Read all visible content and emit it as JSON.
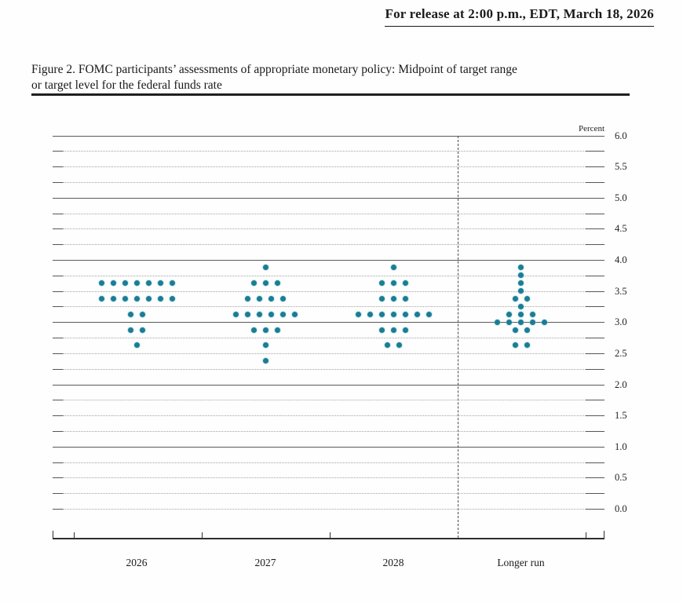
{
  "header": {
    "release_line": "For release at 2:00 p.m., EDT, March 18, 2026"
  },
  "figure": {
    "title_line1": "Figure 2. FOMC participants’ assessments of appropriate monetary policy: Midpoint of target range",
    "title_line2": "or target level for the federal funds rate"
  },
  "chart_data": {
    "type": "scatter",
    "title": "FOMC participants’ assessments of appropriate monetary policy: Midpoint of target range or target level for the federal funds rate",
    "unit_label": "Percent",
    "ylabel": "Percent",
    "ylim": [
      0.0,
      6.0
    ],
    "y_label_step": 0.5,
    "y_grid_step": 0.25,
    "grid": "solid lines at whole percents (1.0–6.0), dotted lines at quarter percents and 0.0",
    "legend_position": "none",
    "y_axis_labels": [
      "6.0",
      "5.5",
      "5.0",
      "4.5",
      "4.0",
      "3.5",
      "3.0",
      "2.5",
      "2.0",
      "1.5",
      "1.0",
      "0.5",
      "0.0"
    ],
    "categories": [
      "2026",
      "2027",
      "2028",
      "Longer run"
    ],
    "dot_color": "#1b7d93",
    "projections": [
      {
        "label": "2026",
        "dots": [
          {
            "rate": 3.625,
            "count": 7
          },
          {
            "rate": 3.375,
            "count": 7
          },
          {
            "rate": 3.125,
            "count": 2
          },
          {
            "rate": 2.875,
            "count": 2
          },
          {
            "rate": 2.625,
            "count": 1
          }
        ]
      },
      {
        "label": "2027",
        "dots": [
          {
            "rate": 3.875,
            "count": 1
          },
          {
            "rate": 3.625,
            "count": 3
          },
          {
            "rate": 3.375,
            "count": 4
          },
          {
            "rate": 3.125,
            "count": 6
          },
          {
            "rate": 2.875,
            "count": 3
          },
          {
            "rate": 2.625,
            "count": 1
          },
          {
            "rate": 2.375,
            "count": 1
          }
        ]
      },
      {
        "label": "2028",
        "dots": [
          {
            "rate": 3.875,
            "count": 1
          },
          {
            "rate": 3.625,
            "count": 3
          },
          {
            "rate": 3.375,
            "count": 3
          },
          {
            "rate": 3.125,
            "count": 7
          },
          {
            "rate": 2.875,
            "count": 3
          },
          {
            "rate": 2.625,
            "count": 2
          }
        ]
      },
      {
        "label": "Longer run",
        "dots": [
          {
            "rate": 3.875,
            "count": 1
          },
          {
            "rate": 3.75,
            "count": 1
          },
          {
            "rate": 3.625,
            "count": 1
          },
          {
            "rate": 3.5,
            "count": 1
          },
          {
            "rate": 3.375,
            "count": 2
          },
          {
            "rate": 3.25,
            "count": 1
          },
          {
            "rate": 3.125,
            "count": 3
          },
          {
            "rate": 3.0,
            "count": 5
          },
          {
            "rate": 2.875,
            "count": 2
          },
          {
            "rate": 2.625,
            "count": 2
          }
        ]
      }
    ]
  }
}
